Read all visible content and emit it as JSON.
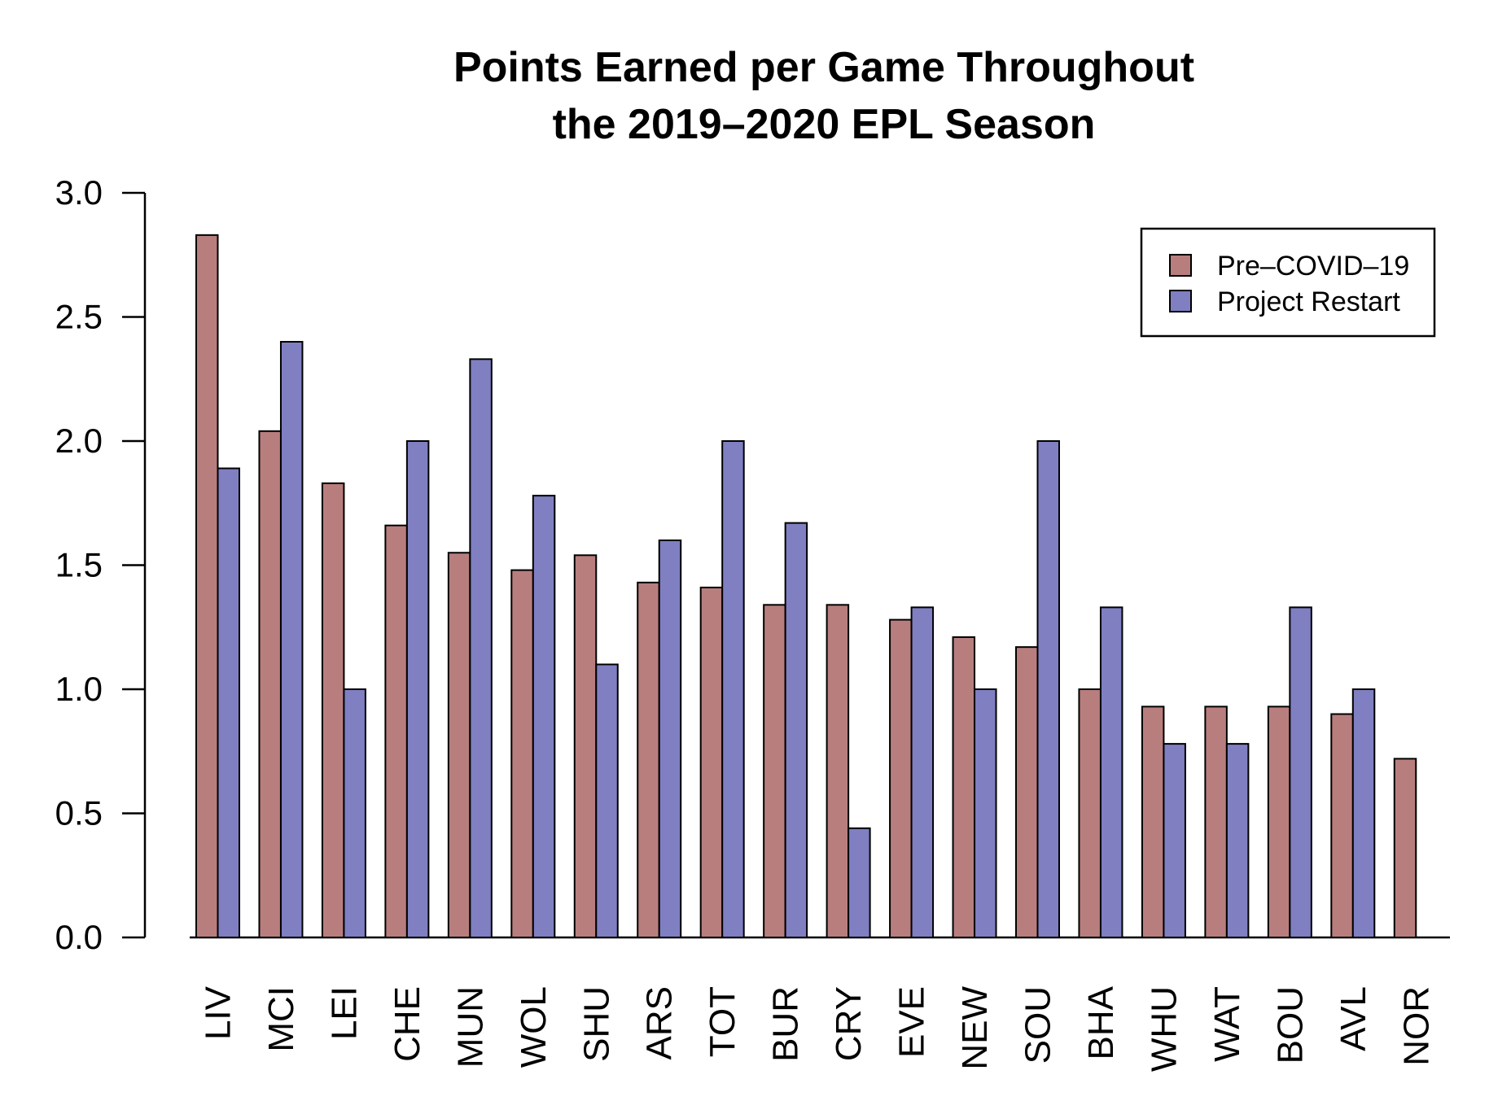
{
  "chart_data": {
    "type": "bar",
    "title_lines": [
      "Points Earned per Game Throughout",
      "the 2019–2020 EPL Season"
    ],
    "xlabel": "",
    "ylabel": "",
    "ylim": [
      0,
      3.0
    ],
    "yticks": [
      "0.0",
      "0.5",
      "1.0",
      "1.5",
      "2.0",
      "2.5",
      "3.0"
    ],
    "categories": [
      "LIV",
      "MCI",
      "LEI",
      "CHE",
      "MUN",
      "WOL",
      "SHU",
      "ARS",
      "TOT",
      "BUR",
      "CRY",
      "EVE",
      "NEW",
      "SOU",
      "BHA",
      "WHU",
      "WAT",
      "BOU",
      "AVL",
      "NOR"
    ],
    "series": [
      {
        "name": "Pre–COVID–19",
        "color": "#b87e7e",
        "values": [
          2.83,
          2.04,
          1.83,
          1.66,
          1.55,
          1.48,
          1.54,
          1.43,
          1.41,
          1.34,
          1.34,
          1.28,
          1.21,
          1.17,
          1.0,
          0.93,
          0.93,
          0.93,
          0.9,
          0.72
        ]
      },
      {
        "name": "Project Restart",
        "color": "#7f7fc2",
        "values": [
          1.89,
          2.4,
          1.0,
          2.0,
          2.33,
          1.78,
          1.1,
          1.6,
          2.0,
          1.67,
          0.44,
          1.33,
          1.0,
          2.0,
          1.33,
          0.78,
          0.78,
          1.33,
          1.0,
          null
        ]
      }
    ],
    "legend_position": "top-right",
    "grid": false
  }
}
